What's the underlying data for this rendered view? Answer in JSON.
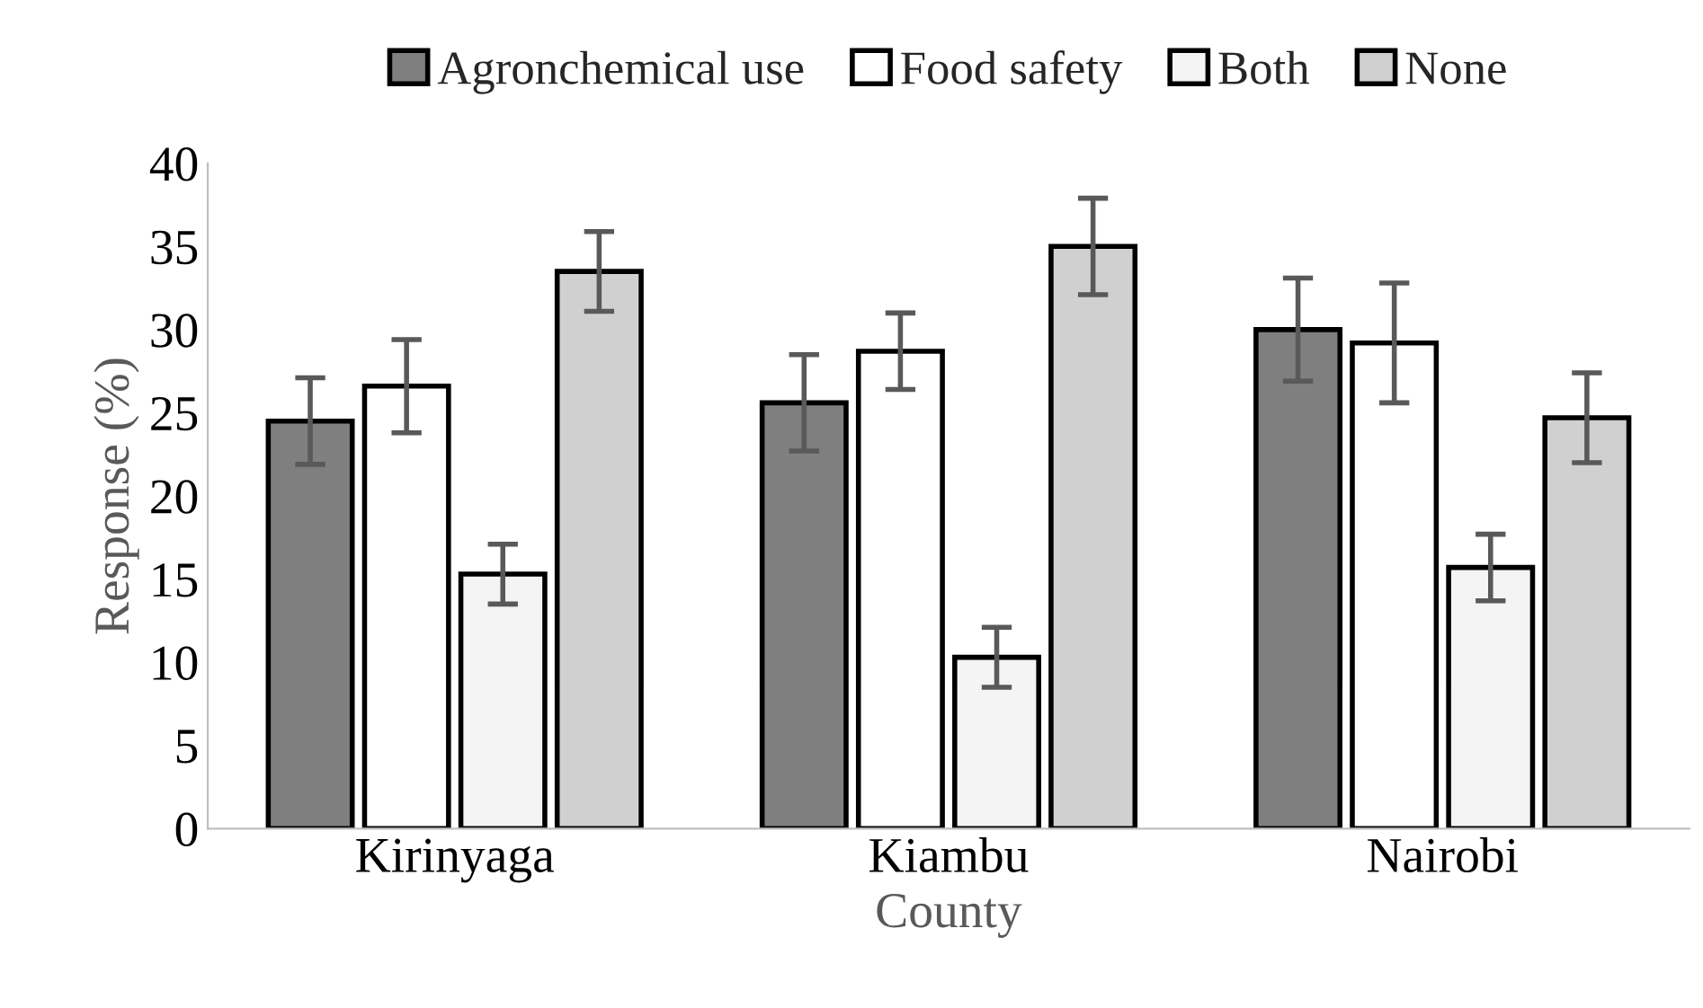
{
  "chart_data": {
    "type": "bar",
    "xlabel": "County",
    "ylabel": "Response (%)",
    "categories": [
      "Kirinyaga",
      "Kiambu",
      "Nairobi"
    ],
    "series": [
      {
        "name": "Agronchemical use",
        "color": "#7f7f7f",
        "values": [
          24.5,
          25.6,
          30.0
        ],
        "errors": [
          2.6,
          2.9,
          3.1
        ]
      },
      {
        "name": "Food safety",
        "color": "#ffffff",
        "values": [
          26.6,
          28.7,
          29.2
        ],
        "errors": [
          2.8,
          2.3,
          3.6
        ]
      },
      {
        "name": "Both",
        "color": "#f4f4f4",
        "values": [
          15.3,
          10.3,
          15.7
        ],
        "errors": [
          1.8,
          1.8,
          2.0
        ]
      },
      {
        "name": "None",
        "color": "#d0d0d0",
        "values": [
          33.5,
          35.0,
          24.7
        ],
        "errors": [
          2.4,
          2.9,
          2.7
        ]
      }
    ],
    "ylim": [
      0,
      40
    ],
    "yticks": [
      0,
      5,
      10,
      15,
      20,
      25,
      30,
      35,
      40
    ],
    "grid": false,
    "legend": "top"
  }
}
